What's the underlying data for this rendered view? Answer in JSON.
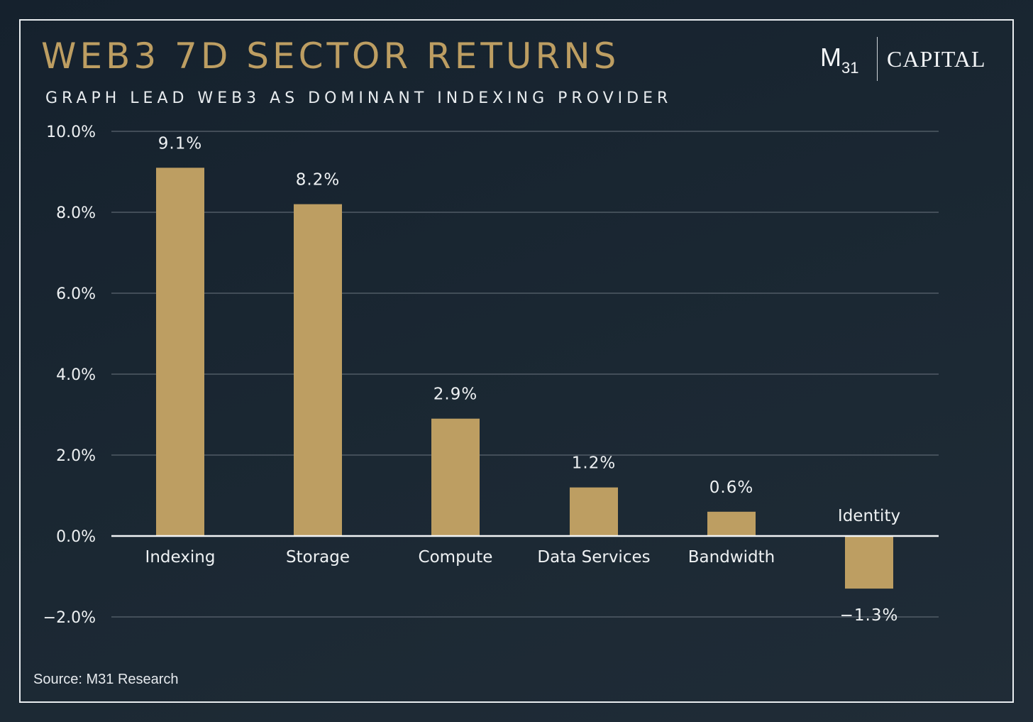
{
  "header": {
    "title": "WEB3 7D SECTOR RETURNS",
    "subtitle": "GRAPH LEAD WEB3 AS DOMINANT INDEXING PROVIDER"
  },
  "logo": {
    "mark": "M",
    "mark_sub": "31",
    "wordmark": "CAPITAL"
  },
  "footer": {
    "source": "Source: M31 Research"
  },
  "colors": {
    "bar": "#bd9e62",
    "gridline": "#5b6670",
    "zero_line": "#f2f4f6",
    "text": "#eef1f3",
    "title": "#bd9e62"
  },
  "chart_data": {
    "type": "bar",
    "title": "WEB3 7D SECTOR RETURNS",
    "subtitle": "GRAPH LEAD WEB3 AS DOMINANT INDEXING PROVIDER",
    "xlabel": "",
    "ylabel": "",
    "categories": [
      "Indexing",
      "Storage",
      "Compute",
      "Data Services",
      "Bandwidth",
      "Identity"
    ],
    "values": [
      9.1,
      8.2,
      2.9,
      1.2,
      0.6,
      -1.3
    ],
    "data_labels": [
      "9.1%",
      "8.2%",
      "2.9%",
      "1.2%",
      "0.6%",
      "−1.3%"
    ],
    "ylim": [
      -2.0,
      10.0
    ],
    "yticks": [
      10.0,
      8.0,
      6.0,
      4.0,
      2.0,
      0.0,
      -2.0
    ],
    "ytick_labels": [
      "10.0%",
      "8.0%",
      "6.0%",
      "4.0%",
      "2.0%",
      "0.0%",
      "−2.0%"
    ],
    "grid": true,
    "legend": "none"
  }
}
